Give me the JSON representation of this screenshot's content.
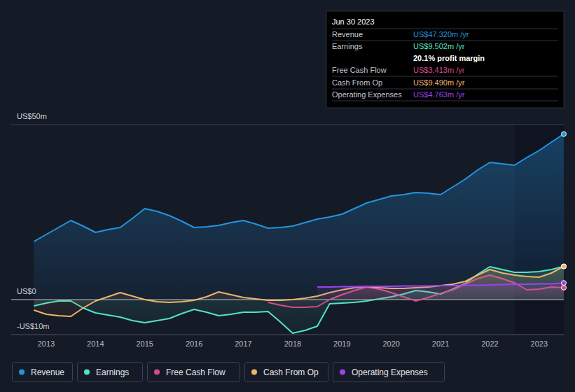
{
  "chart_data": {
    "type": "line",
    "x": [
      2012.75,
      2013.0,
      2013.25,
      2013.5,
      2013.75,
      2014.0,
      2014.25,
      2014.5,
      2014.75,
      2015.0,
      2015.25,
      2015.5,
      2015.75,
      2016.0,
      2016.25,
      2016.5,
      2016.75,
      2017.0,
      2017.25,
      2017.5,
      2017.75,
      2018.0,
      2018.25,
      2018.5,
      2018.75,
      2019.0,
      2019.25,
      2019.5,
      2019.75,
      2020.0,
      2020.25,
      2020.5,
      2020.75,
      2021.0,
      2021.25,
      2021.5,
      2021.75,
      2022.0,
      2022.25,
      2022.5,
      2022.75,
      2023.0,
      2023.25,
      2023.5
    ],
    "series": [
      {
        "name": "Revenue",
        "color": "#2394df",
        "values": [
          16.6,
          18.6,
          20.6,
          22.6,
          21,
          19.2,
          20,
          20.6,
          23.2,
          26,
          25.2,
          24,
          22.4,
          20.6,
          20.8,
          21.2,
          22,
          22.6,
          21.6,
          20.4,
          20.6,
          21,
          22,
          23,
          23.6,
          24.4,
          26,
          27.6,
          28.6,
          29.6,
          30,
          30.6,
          30.4,
          30,
          32.2,
          34.4,
          37,
          39.2,
          38.8,
          38.4,
          40.6,
          42.6,
          45,
          47.32
        ]
      },
      {
        "name": "Earnings",
        "color": "#52e3c2",
        "values": [
          -1.8,
          -1,
          -0.4,
          -0.4,
          -2.4,
          -3.8,
          -4.4,
          -5,
          -6,
          -6.6,
          -6,
          -5.4,
          -4,
          -2.8,
          -3.6,
          -4.6,
          -4.2,
          -3.6,
          -3.6,
          -3.4,
          -6.4,
          -9.6,
          -8.8,
          -7.6,
          -1.2,
          -1,
          -0.8,
          -0.4,
          0.2,
          0.8,
          1.6,
          2.6,
          2.2,
          1.6,
          3,
          4.6,
          7.2,
          9.4,
          8.6,
          7.8,
          7.8,
          8,
          8.6,
          9.502
        ]
      },
      {
        "name": "Free Cash Flow",
        "color": "#d44b8b",
        "values": [
          null,
          null,
          null,
          null,
          null,
          null,
          null,
          null,
          null,
          null,
          null,
          null,
          null,
          null,
          null,
          null,
          null,
          null,
          null,
          -0.8,
          -1.6,
          -2.2,
          -2.2,
          -2,
          0,
          1.4,
          2.6,
          3.6,
          3,
          2,
          0.8,
          -0.4,
          0.6,
          1.8,
          2.8,
          4.4,
          6,
          7,
          6,
          4.8,
          2.8,
          3,
          3.6,
          3.413
        ]
      },
      {
        "name": "Cash From Op",
        "color": "#f0b36b",
        "values": [
          -3,
          -4.2,
          -4.6,
          -4.8,
          -2.4,
          -0.4,
          0.8,
          2,
          1,
          0,
          -0.6,
          -0.8,
          -0.6,
          -0.2,
          0.8,
          2.2,
          1.4,
          0.6,
          0.2,
          -0.2,
          -0.2,
          0,
          0.4,
          1,
          2,
          2.8,
          3.4,
          3.8,
          3.4,
          3.2,
          3.2,
          3.4,
          3.6,
          4,
          4.4,
          5.2,
          7,
          8.6,
          7.6,
          7,
          6.6,
          6.4,
          7.6,
          9.49
        ]
      },
      {
        "name": "Operating Expenses",
        "color": "#9b42f0",
        "values": [
          null,
          null,
          null,
          null,
          null,
          null,
          null,
          null,
          null,
          null,
          null,
          null,
          null,
          null,
          null,
          null,
          null,
          null,
          null,
          null,
          null,
          null,
          null,
          3.6,
          3.6,
          3.7,
          3.7,
          3.8,
          3.8,
          3.8,
          3.9,
          3.9,
          3.9,
          4.0,
          4.0,
          4.1,
          4.1,
          4.2,
          4.3,
          4.4,
          4.4,
          4.5,
          4.5,
          4.763
        ]
      }
    ],
    "xlim": [
      2012.29,
      2023.5
    ],
    "xticks": [
      2013,
      2014,
      2015,
      2016,
      2017,
      2018,
      2019,
      2020,
      2021,
      2022,
      2023
    ],
    "ylim": [
      -10,
      50
    ],
    "yticks": [
      {
        "value": -10,
        "label": "-US$10m"
      },
      {
        "value": 0,
        "label": "US$0"
      },
      {
        "value": 50,
        "label": "US$50m"
      }
    ],
    "grid": true,
    "legend": "bottom"
  },
  "tooltip": {
    "date": "Jun 30 2023",
    "rows": [
      {
        "label": "Revenue",
        "value": "US$47.320m /yr",
        "color": "#2394df"
      },
      {
        "label": "Earnings",
        "value": "US$9.502m /yr",
        "color": "#52e3c2"
      },
      {
        "label": "Free Cash Flow",
        "value": "US$3.413m /yr",
        "color": "#d44b8b"
      },
      {
        "label": "Cash From Op",
        "value": "US$9.490m /yr",
        "color": "#f0b36b"
      },
      {
        "label": "Operating Expenses",
        "value": "US$4.763m /yr",
        "color": "#9b42f0"
      }
    ],
    "margin": "20.1% profit margin"
  }
}
